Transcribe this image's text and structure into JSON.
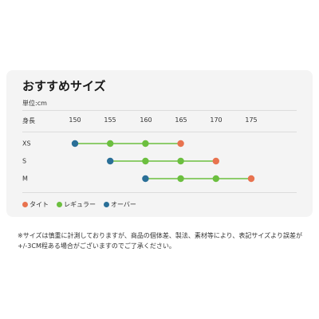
{
  "title": "おすすめサイズ",
  "unit": "単位:cm",
  "colors": {
    "tight": "#e8734f",
    "regular": "#6cbf3f",
    "over": "#2a6f97",
    "line": "#6cbf3f"
  },
  "chart_data": {
    "type": "dot-range",
    "x_axis_label": "身長",
    "x_ticks": [
      "150",
      "155",
      "160",
      "165",
      "170",
      "175"
    ],
    "xlim": [
      150,
      175
    ],
    "rows": [
      {
        "size": "XS",
        "over": 150,
        "regular": [
          155,
          160
        ],
        "tight": 165
      },
      {
        "size": "S",
        "over": 155,
        "regular": [
          160,
          165
        ],
        "tight": 170
      },
      {
        "size": "M",
        "over": 160,
        "regular": [
          165,
          170
        ],
        "tight": 175
      }
    ],
    "legend": [
      {
        "key": "tight",
        "label": "タイト"
      },
      {
        "key": "regular",
        "label": "レギュラー"
      },
      {
        "key": "over",
        "label": "オーバー"
      }
    ]
  },
  "note": "※サイズは慎重に計測しておりますが、商品の個体差、製法、素材等により、表記サイズより誤差が+/-3CM程ある場合がございますのでご了承ください。"
}
